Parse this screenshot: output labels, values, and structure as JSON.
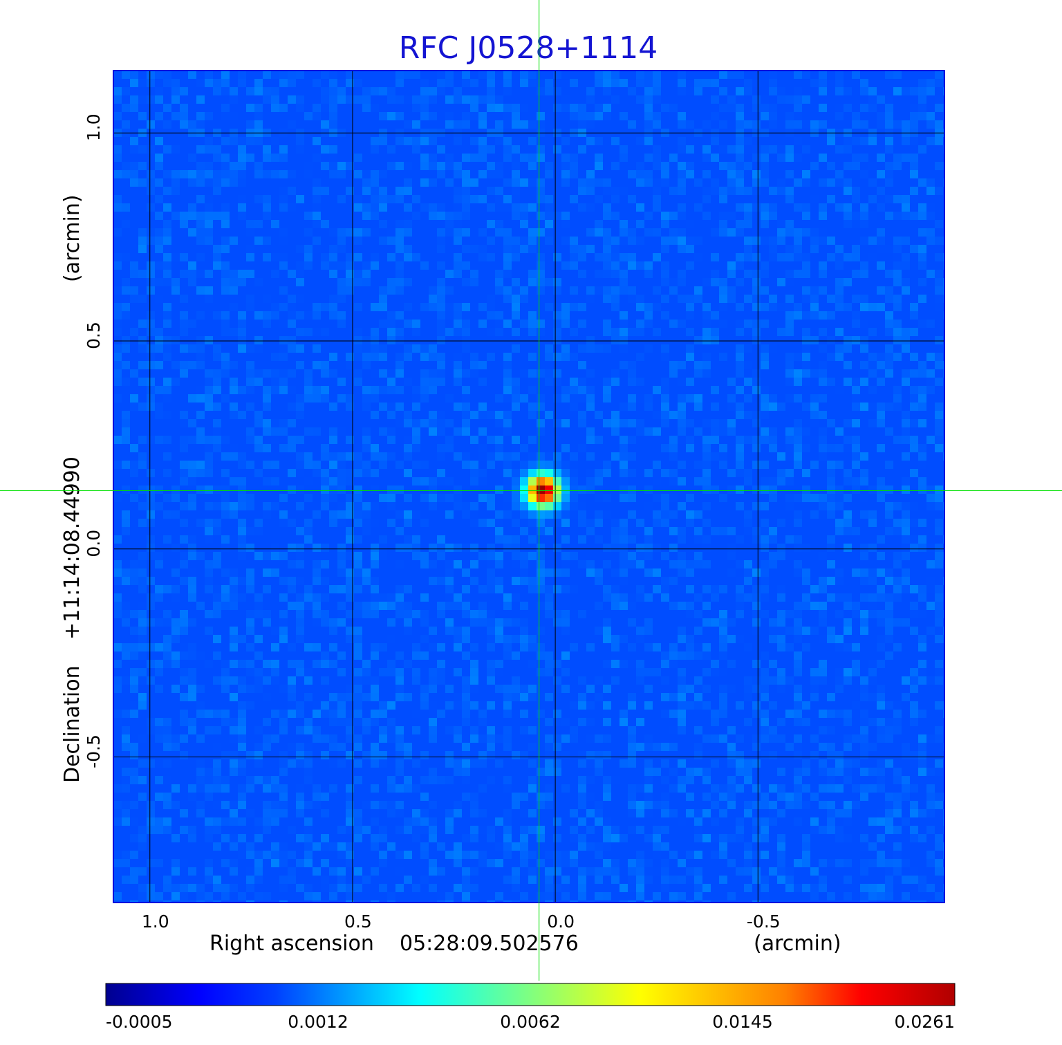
{
  "chart_data": {
    "type": "heatmap",
    "title": "RFC J0528+1114",
    "xlabel": {
      "prefix": "Right ascension",
      "coordinate": "05:28:09.502576",
      "unit": "(arcmin)"
    },
    "ylabel": {
      "prefix": "Declination",
      "coordinate": "+11:14:08.44990",
      "unit": "(arcmin)"
    },
    "xlim": [
      1.09,
      -0.96
    ],
    "ylim": [
      -0.85,
      1.15
    ],
    "x_ticks": [
      {
        "value": 1.0,
        "label": "1.0"
      },
      {
        "value": 0.5,
        "label": "0.5"
      },
      {
        "value": 0.0,
        "label": "0.0"
      },
      {
        "value": -0.5,
        "label": "-0.5"
      }
    ],
    "y_ticks": [
      {
        "value": 1.0,
        "label": "1.0"
      },
      {
        "value": 0.5,
        "label": "0.5"
      },
      {
        "value": 0.0,
        "label": "0.0"
      },
      {
        "value": -0.5,
        "label": "-0.5"
      }
    ],
    "grid": true,
    "crosshair": {
      "x": 0.04,
      "y": 0.14,
      "color": "#00e000"
    },
    "source_peak": {
      "x": 0.03,
      "y": 0.14,
      "peak_value": 0.0261
    },
    "colorbar": {
      "colormap": "jet",
      "tick_labels": [
        "-0.0005",
        "0.0012",
        "0.0062",
        "0.0145",
        "0.0261"
      ]
    },
    "colors": {
      "title": "#1414d2",
      "grid": "#000000",
      "crosshair": "#00e000",
      "frame": "#0000dd"
    }
  }
}
